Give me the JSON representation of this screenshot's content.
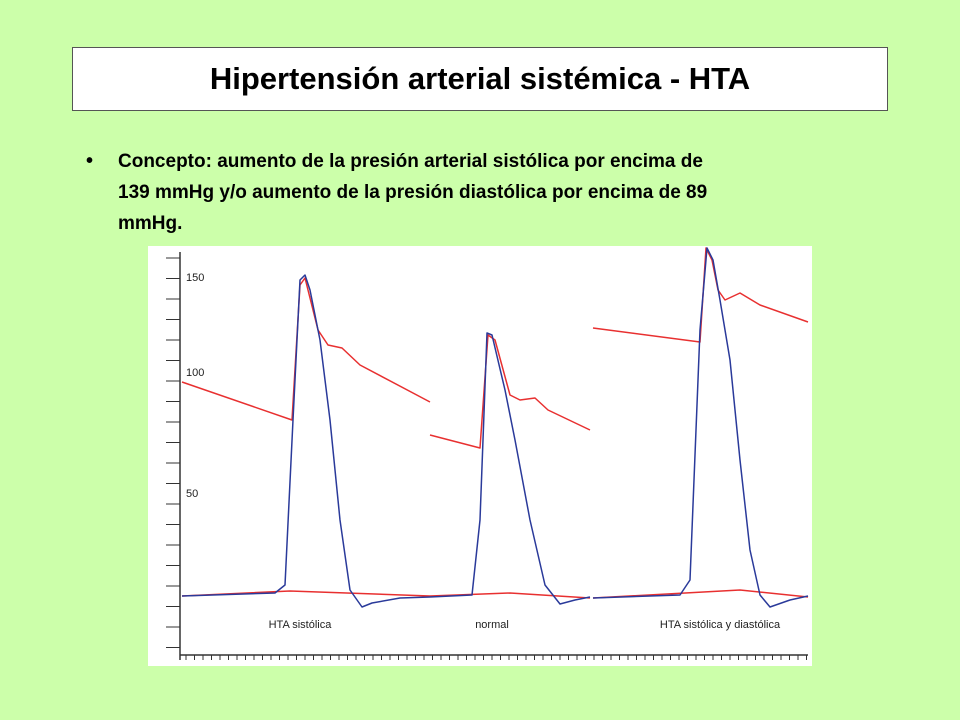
{
  "title": "Hipertensión arterial sistémica - HTA",
  "bullet": {
    "lines": [
      "Concepto: aumento de la presión arterial sistólica por encima de",
      "139 mmHg y/o aumento de la presión diastólica por encima de 89",
      "mmHg."
    ]
  },
  "figure": {
    "y_labels": [
      "150",
      "100",
      "50"
    ],
    "captions": [
      "HTA sistólica",
      "normal",
      "HTA sistólica y diastólica"
    ]
  }
}
